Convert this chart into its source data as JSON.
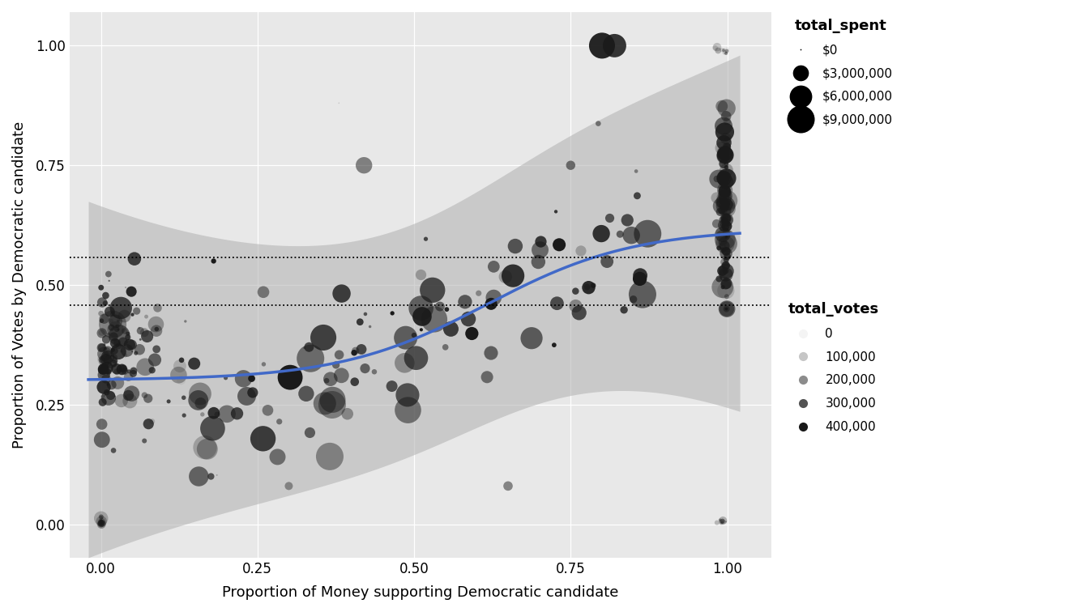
{
  "background_color": "#e8e8e8",
  "plot_bg_color": "#e8e8e8",
  "xlabel": "Proportion of Money supporting Democratic candidate",
  "ylabel": "Proportion of Votes by Democratic candidate",
  "xlim": [
    -0.05,
    1.07
  ],
  "ylim": [
    -0.07,
    1.07
  ],
  "xticks": [
    0.0,
    0.25,
    0.5,
    0.75,
    1.0
  ],
  "yticks": [
    0.0,
    0.25,
    0.5,
    0.75,
    1.0
  ],
  "hline1": 0.557,
  "hline2": 0.458,
  "trend_color": "#4169c8",
  "trend_lw": 2.5,
  "ci_color": "#b0b0b0",
  "ci_alpha": 0.55,
  "legend_spent_labels": [
    "$0",
    "$3,000,000",
    "$6,000,000",
    "$9,000,000"
  ],
  "legend_spent_sizes": [
    0,
    3000000,
    6000000,
    9000000
  ],
  "legend_votes_labels": [
    "0",
    "100,000",
    "200,000",
    "300,000",
    "400,000"
  ],
  "legend_votes_values": [
    0,
    100000,
    200000,
    300000,
    400000
  ],
  "size_max": 9000000,
  "size_area_max": 600,
  "max_votes": 400000,
  "axis_fontsize": 12,
  "label_fontsize": 13,
  "legend_title_fontsize": 13,
  "legend_fontsize": 11
}
